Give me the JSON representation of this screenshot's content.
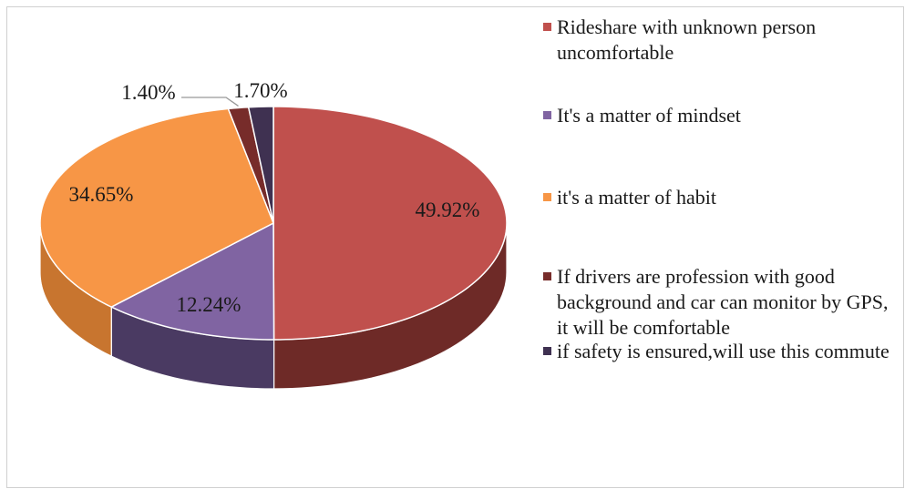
{
  "chart_data": {
    "type": "pie",
    "style": "3d",
    "title": "",
    "legend_position": "right",
    "slices": [
      {
        "name": "Rideshare with unknown person uncomfortable",
        "value": 49.92,
        "label": "49.92%",
        "color": "#C0504D",
        "side_color": "#6E2A27"
      },
      {
        "name": "It's a matter of mindset",
        "value": 12.24,
        "label": "12.24%",
        "color": "#8064A2",
        "side_color": "#4A3A62"
      },
      {
        "name": "it's a matter of habit",
        "value": 34.65,
        "label": "34.65%",
        "color": "#F79646",
        "side_color": "#C8752F"
      },
      {
        "name": "If drivers are profession with good background and car can monitor by GPS, it will be comfortable",
        "value": 1.4,
        "label": "1.40%",
        "color": "#772C2A",
        "side_color": "#4A1A19"
      },
      {
        "name": "if safety is ensured,will use this commute",
        "value": 1.7,
        "label": "1.70%",
        "color": "#3F3151",
        "side_color": "#2A2136"
      }
    ]
  }
}
